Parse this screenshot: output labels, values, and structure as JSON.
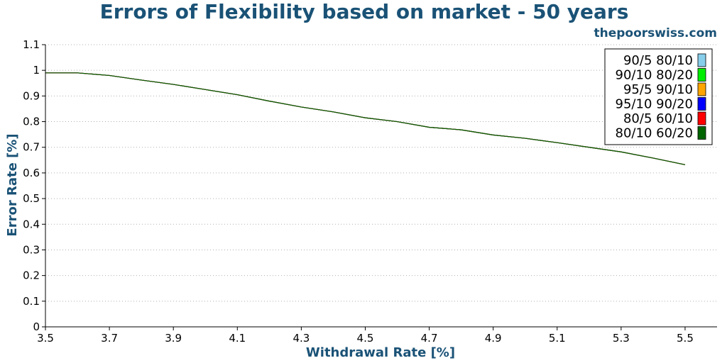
{
  "chart_data": {
    "type": "line",
    "title": "Errors of Flexibility based on market - 50 years",
    "watermark": "thepoorswiss.com",
    "xlabel": "Withdrawal Rate [%]",
    "ylabel": "Error Rate [%]",
    "xlim": [
      3.5,
      5.6
    ],
    "ylim": [
      0,
      1.1
    ],
    "x_ticks": [
      "3.5",
      "3.7",
      "3.9",
      "4.1",
      "4.3",
      "4.5",
      "4.7",
      "4.9",
      "5.1",
      "5.3",
      "5.5"
    ],
    "y_ticks": [
      "0",
      "0.1",
      "0.2",
      "0.3",
      "0.4",
      "0.5",
      "0.6",
      "0.7",
      "0.8",
      "0.9",
      "1",
      "1.1"
    ],
    "grid": "horizontal dotted",
    "legend_position": "top-right",
    "colors": {
      "title": "#1a5276",
      "axis_labels": "#1a5276"
    },
    "series": [
      {
        "name": "90/5 80/10",
        "color": "#87ceeb",
        "x": [
          3.5,
          3.6,
          3.7,
          3.8,
          3.9,
          4.0,
          4.1,
          4.2,
          4.3,
          4.4,
          4.5,
          4.6,
          4.7,
          4.8,
          4.9,
          5.0,
          5.1,
          5.2,
          5.3,
          5.4,
          5.5
        ],
        "y": [
          0.99,
          0.99,
          0.98,
          0.962,
          0.945,
          0.925,
          0.905,
          0.88,
          0.857,
          0.838,
          0.815,
          0.8,
          0.778,
          0.768,
          0.748,
          0.735,
          0.718,
          0.7,
          0.682,
          0.658,
          0.632
        ]
      },
      {
        "name": "90/10 80/20",
        "color": "#00ee00",
        "x": [
          3.5,
          3.6,
          3.7,
          3.8,
          3.9,
          4.0,
          4.1,
          4.2,
          4.3,
          4.4,
          4.5,
          4.6,
          4.7,
          4.8,
          4.9,
          5.0,
          5.1,
          5.2,
          5.3,
          5.4,
          5.5
        ],
        "y": [
          0.99,
          0.99,
          0.98,
          0.962,
          0.945,
          0.925,
          0.905,
          0.88,
          0.857,
          0.838,
          0.815,
          0.8,
          0.778,
          0.768,
          0.748,
          0.735,
          0.718,
          0.7,
          0.682,
          0.658,
          0.632
        ]
      },
      {
        "name": "95/5 90/10",
        "color": "#ffa500",
        "x": [
          3.5,
          3.6,
          3.7,
          3.8,
          3.9,
          4.0,
          4.1,
          4.2,
          4.3,
          4.4,
          4.5,
          4.6,
          4.7,
          4.8,
          4.9,
          5.0,
          5.1,
          5.2,
          5.3,
          5.4,
          5.5
        ],
        "y": [
          0.99,
          0.99,
          0.98,
          0.962,
          0.945,
          0.925,
          0.905,
          0.88,
          0.857,
          0.838,
          0.815,
          0.8,
          0.778,
          0.768,
          0.748,
          0.735,
          0.718,
          0.7,
          0.682,
          0.658,
          0.632
        ]
      },
      {
        "name": "95/10 90/20",
        "color": "#0000ff",
        "x": [
          3.5,
          3.6,
          3.7,
          3.8,
          3.9,
          4.0,
          4.1,
          4.2,
          4.3,
          4.4,
          4.5,
          4.6,
          4.7,
          4.8,
          4.9,
          5.0,
          5.1,
          5.2,
          5.3,
          5.4,
          5.5
        ],
        "y": [
          0.99,
          0.99,
          0.98,
          0.962,
          0.945,
          0.925,
          0.905,
          0.88,
          0.857,
          0.838,
          0.815,
          0.8,
          0.778,
          0.768,
          0.748,
          0.735,
          0.718,
          0.7,
          0.682,
          0.658,
          0.632
        ]
      },
      {
        "name": "80/5 60/10",
        "color": "#ff0000",
        "x": [
          3.5,
          3.6,
          3.7,
          3.8,
          3.9,
          4.0,
          4.1,
          4.2,
          4.3,
          4.4,
          4.5,
          4.6,
          4.7,
          4.8,
          4.9,
          5.0,
          5.1,
          5.2,
          5.3,
          5.4,
          5.5
        ],
        "y": [
          0.99,
          0.99,
          0.98,
          0.962,
          0.945,
          0.925,
          0.905,
          0.88,
          0.857,
          0.838,
          0.815,
          0.8,
          0.778,
          0.768,
          0.748,
          0.735,
          0.718,
          0.7,
          0.682,
          0.658,
          0.632
        ]
      },
      {
        "name": "80/10 60/20",
        "color": "#006400",
        "x": [
          3.5,
          3.6,
          3.7,
          3.8,
          3.9,
          4.0,
          4.1,
          4.2,
          4.3,
          4.4,
          4.5,
          4.6,
          4.7,
          4.8,
          4.9,
          5.0,
          5.1,
          5.2,
          5.3,
          5.4,
          5.5
        ],
        "y": [
          0.99,
          0.99,
          0.98,
          0.962,
          0.945,
          0.925,
          0.905,
          0.88,
          0.857,
          0.838,
          0.815,
          0.8,
          0.778,
          0.768,
          0.748,
          0.735,
          0.718,
          0.7,
          0.682,
          0.658,
          0.632
        ]
      }
    ]
  }
}
